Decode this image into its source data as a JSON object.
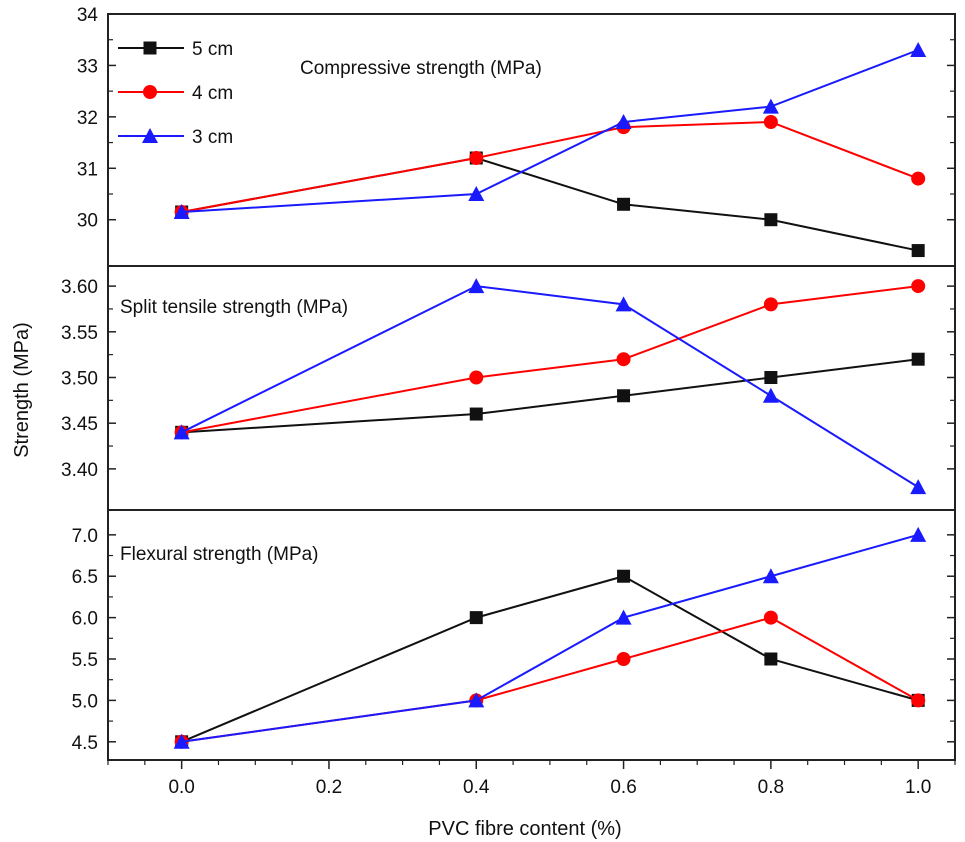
{
  "chart_data": {
    "type": "line",
    "x_title": "PVC fibre content (%)",
    "y_title": "Strength (MPa)",
    "x": [
      0.0,
      0.4,
      0.6,
      0.8,
      1.0
    ],
    "x_ticks": [
      "0.0",
      "0.2",
      "0.4",
      "0.6",
      "0.8",
      "1.0"
    ],
    "xlim": [
      -0.1,
      1.05
    ],
    "legend": [
      {
        "name": "5 cm",
        "color": "#111111",
        "marker": "square"
      },
      {
        "name": "4 cm",
        "color": "#ff0000",
        "marker": "circle"
      },
      {
        "name": "3 cm",
        "color": "#1a1aff",
        "marker": "triangle"
      }
    ],
    "legend_position": "top-left",
    "panels": [
      {
        "title": "Compressive strength (MPa)",
        "ylim": [
          29.1,
          34.0
        ],
        "y_ticks": [
          "30",
          "31",
          "32",
          "33",
          "34"
        ],
        "series": [
          {
            "name": "5 cm",
            "values": [
              30.15,
              31.2,
              30.3,
              30.0,
              29.4
            ]
          },
          {
            "name": "4 cm",
            "values": [
              30.15,
              31.2,
              31.8,
              31.9,
              30.8
            ]
          },
          {
            "name": "3 cm",
            "values": [
              30.15,
              30.5,
              31.9,
              32.2,
              33.3
            ]
          }
        ]
      },
      {
        "title": "Split tensile strength (MPa)",
        "ylim": [
          3.355,
          3.622
        ],
        "y_ticks": [
          "3.40",
          "3.45",
          "3.50",
          "3.55",
          "3.60"
        ],
        "series": [
          {
            "name": "5 cm",
            "values": [
              3.44,
              3.46,
              3.48,
              3.5,
              3.52
            ]
          },
          {
            "name": "4 cm",
            "values": [
              3.44,
              3.5,
              3.52,
              3.58,
              3.6
            ]
          },
          {
            "name": "3 cm",
            "values": [
              3.44,
              3.6,
              3.58,
              3.48,
              3.38
            ]
          }
        ]
      },
      {
        "title": "Flexural strength (MPa)",
        "ylim": [
          4.28,
          7.3
        ],
        "y_ticks": [
          "4.5",
          "5.0",
          "5.5",
          "6.0",
          "6.5",
          "7.0"
        ],
        "series": [
          {
            "name": "5 cm",
            "values": [
              4.5,
              6.0,
              6.5,
              5.5,
              5.0
            ]
          },
          {
            "name": "4 cm",
            "values": [
              4.5,
              5.0,
              5.5,
              6.0,
              5.0
            ]
          },
          {
            "name": "3 cm",
            "values": [
              4.5,
              5.0,
              6.0,
              6.5,
              7.0
            ]
          }
        ]
      }
    ]
  }
}
